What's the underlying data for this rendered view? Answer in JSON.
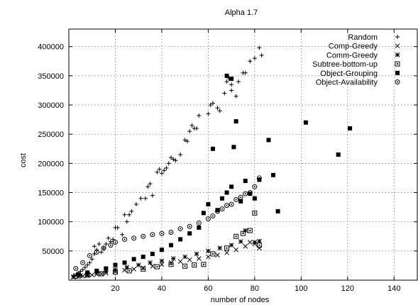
{
  "chart_data": {
    "type": "scatter",
    "title": "Alpha 1.7",
    "xlabel": "number of nodes",
    "ylabel": "cost",
    "xlim": [
      0,
      150
    ],
    "ylim": [
      0,
      430000
    ],
    "xticks": [
      20,
      40,
      60,
      80,
      100,
      120,
      140
    ],
    "yticks": [
      50000,
      100000,
      150000,
      200000,
      250000,
      300000,
      350000,
      400000
    ],
    "xtick_labels": [
      "20",
      "40",
      "60",
      "80",
      "100",
      "120",
      "140"
    ],
    "ytick_labels": [
      "50000",
      "100000",
      "150000",
      "200000",
      "250000",
      "300000",
      "350000",
      "400000"
    ],
    "grid": true,
    "legend_position": "top-right",
    "series": [
      {
        "name": "Random",
        "marker": "plus",
        "points": [
          [
            2,
            8000
          ],
          [
            4,
            12000
          ],
          [
            5,
            15000
          ],
          [
            6,
            18000
          ],
          [
            7,
            22000
          ],
          [
            8,
            26000
          ],
          [
            9,
            30000
          ],
          [
            10,
            36000
          ],
          [
            11,
            45000
          ],
          [
            11,
            58000
          ],
          [
            12,
            52000
          ],
          [
            13,
            62000
          ],
          [
            14,
            48000
          ],
          [
            15,
            55000
          ],
          [
            16,
            62000
          ],
          [
            17,
            72000
          ],
          [
            18,
            66000
          ],
          [
            19,
            70000
          ],
          [
            20,
            90000
          ],
          [
            21,
            90000
          ],
          [
            23,
            78000
          ],
          [
            24,
            112000
          ],
          [
            25,
            100000
          ],
          [
            26,
            112000
          ],
          [
            27,
            118000
          ],
          [
            29,
            130000
          ],
          [
            31,
            140000
          ],
          [
            33,
            140000
          ],
          [
            34,
            160000
          ],
          [
            35,
            165000
          ],
          [
            36,
            145000
          ],
          [
            38,
            185000
          ],
          [
            39,
            190000
          ],
          [
            40,
            183000
          ],
          [
            41,
            188000
          ],
          [
            42,
            192000
          ],
          [
            43,
            200000
          ],
          [
            44,
            210000
          ],
          [
            45,
            207000
          ],
          [
            46,
            205000
          ],
          [
            48,
            215000
          ],
          [
            50,
            240000
          ],
          [
            51,
            238000
          ],
          [
            52,
            255000
          ],
          [
            53,
            265000
          ],
          [
            54,
            260000
          ],
          [
            55,
            260000
          ],
          [
            56,
            282000
          ],
          [
            60,
            285000
          ],
          [
            61,
            300000
          ],
          [
            62,
            303000
          ],
          [
            64,
            295000
          ],
          [
            65,
            290000
          ],
          [
            67,
            320000
          ],
          [
            68,
            340000
          ],
          [
            69,
            345000
          ],
          [
            70,
            335000
          ],
          [
            70,
            325000
          ],
          [
            72,
            315000
          ],
          [
            73,
            340000
          ],
          [
            75,
            355000
          ],
          [
            76,
            355000
          ],
          [
            78,
            375000
          ],
          [
            80,
            380000
          ],
          [
            82,
            398000
          ],
          [
            83,
            385000
          ]
        ]
      },
      {
        "name": "Comp-Greedy",
        "marker": "cross",
        "points": [
          [
            2,
            5000
          ],
          [
            4,
            6000
          ],
          [
            6,
            7000
          ],
          [
            8,
            8000
          ],
          [
            10,
            9000
          ],
          [
            12,
            10000
          ],
          [
            14,
            11000
          ],
          [
            16,
            12000
          ],
          [
            20,
            15000
          ],
          [
            24,
            17000
          ],
          [
            28,
            19000
          ],
          [
            32,
            21000
          ],
          [
            36,
            24000
          ],
          [
            40,
            27000
          ],
          [
            44,
            30000
          ],
          [
            48,
            32000
          ],
          [
            52,
            35000
          ],
          [
            56,
            37000
          ],
          [
            60,
            40000
          ],
          [
            64,
            43000
          ],
          [
            68,
            47000
          ],
          [
            72,
            52000
          ],
          [
            76,
            58000
          ],
          [
            78,
            65000
          ],
          [
            80,
            62000
          ],
          [
            82,
            55000
          ]
        ]
      },
      {
        "name": "Comm-Greedy",
        "marker": "star",
        "points": [
          [
            2,
            6000
          ],
          [
            5,
            8000
          ],
          [
            8,
            10000
          ],
          [
            12,
            13000
          ],
          [
            16,
            15000
          ],
          [
            20,
            18000
          ],
          [
            25,
            22000
          ],
          [
            30,
            26000
          ],
          [
            35,
            30000
          ],
          [
            40,
            33000
          ],
          [
            45,
            37000
          ],
          [
            50,
            40000
          ],
          [
            55,
            45000
          ],
          [
            60,
            50000
          ],
          [
            65,
            55000
          ],
          [
            70,
            60000
          ],
          [
            74,
            66000
          ],
          [
            76,
            85000
          ],
          [
            80,
            65000
          ],
          [
            82,
            67000
          ]
        ]
      },
      {
        "name": "Subtree-bottom-up",
        "marker": "boxed-square",
        "points": [
          [
            3,
            7000
          ],
          [
            8,
            9000
          ],
          [
            14,
            11000
          ],
          [
            20,
            14000
          ],
          [
            26,
            16000
          ],
          [
            32,
            19000
          ],
          [
            38,
            23000
          ],
          [
            44,
            27000
          ],
          [
            50,
            24000
          ],
          [
            54,
            26000
          ],
          [
            58,
            27000
          ],
          [
            62,
            45000
          ],
          [
            68,
            55000
          ],
          [
            72,
            75000
          ],
          [
            75,
            80000
          ],
          [
            78,
            85000
          ],
          [
            80,
            115000
          ],
          [
            82,
            60000
          ]
        ]
      },
      {
        "name": "Object-Grouping",
        "marker": "filled-square",
        "points": [
          [
            4,
            10000
          ],
          [
            8,
            13000
          ],
          [
            12,
            16000
          ],
          [
            16,
            20000
          ],
          [
            20,
            26000
          ],
          [
            24,
            30000
          ],
          [
            28,
            36000
          ],
          [
            32,
            40000
          ],
          [
            36,
            45000
          ],
          [
            40,
            52000
          ],
          [
            44,
            60000
          ],
          [
            48,
            70000
          ],
          [
            52,
            80000
          ],
          [
            56,
            90000
          ],
          [
            58,
            115000
          ],
          [
            60,
            130000
          ],
          [
            62,
            225000
          ],
          [
            64,
            120000
          ],
          [
            66,
            140000
          ],
          [
            68,
            150000
          ],
          [
            70,
            160000
          ],
          [
            71,
            228000
          ],
          [
            72,
            272000
          ],
          [
            74,
            135000
          ],
          [
            76,
            170000
          ],
          [
            78,
            148000
          ],
          [
            80,
            140000
          ],
          [
            82,
            172000
          ],
          [
            86,
            240000
          ],
          [
            88,
            180000
          ],
          [
            90,
            118000
          ],
          [
            102,
            270000
          ],
          [
            116,
            215000
          ],
          [
            121,
            260000
          ],
          [
            68,
            350000
          ],
          [
            70,
            345000
          ]
        ]
      },
      {
        "name": "Object-Availability",
        "marker": "dotted-circle",
        "points": [
          [
            3,
            20000
          ],
          [
            6,
            30000
          ],
          [
            9,
            42000
          ],
          [
            12,
            48000
          ],
          [
            15,
            55000
          ],
          [
            18,
            60000
          ],
          [
            20,
            65000
          ],
          [
            24,
            70000
          ],
          [
            28,
            72000
          ],
          [
            32,
            75000
          ],
          [
            36,
            78000
          ],
          [
            40,
            80000
          ],
          [
            44,
            82000
          ],
          [
            48,
            88000
          ],
          [
            52,
            92000
          ],
          [
            56,
            98000
          ],
          [
            60,
            105000
          ],
          [
            62,
            110000
          ],
          [
            64,
            118000
          ],
          [
            66,
            122000
          ],
          [
            68,
            128000
          ],
          [
            70,
            130000
          ],
          [
            72,
            138000
          ],
          [
            74,
            142000
          ],
          [
            76,
            148000
          ],
          [
            78,
            150000
          ],
          [
            80,
            160000
          ],
          [
            82,
            175000
          ]
        ]
      }
    ]
  }
}
